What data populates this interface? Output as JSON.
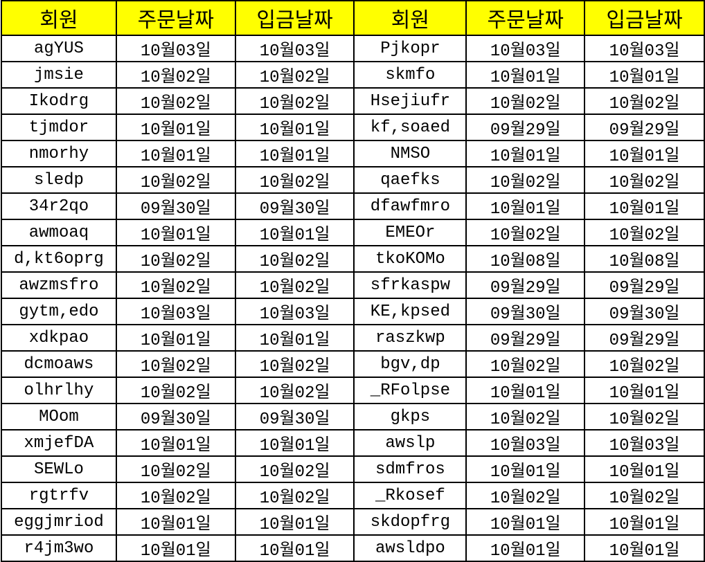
{
  "sheet": {
    "header_bg": "#ffff00",
    "headers": [
      "회원",
      "주문날짜",
      "입금날짜",
      "회원",
      "주문날짜",
      "입금날짜"
    ],
    "rows": [
      [
        "agYUS",
        "10월03일",
        "10월03일",
        "Pjkopr",
        "10월03일",
        "10월03일"
      ],
      [
        "jmsie",
        "10월02일",
        "10월02일",
        "skmfo",
        "10월01일",
        "10월01일"
      ],
      [
        "Ikodrg",
        "10월02일",
        "10월02일",
        "Hsejiufr",
        "10월02일",
        "10월02일"
      ],
      [
        "tjmdor",
        "10월01일",
        "10월01일",
        "kf,soaed",
        "09월29일",
        "09월29일"
      ],
      [
        "nmorhy",
        "10월01일",
        "10월01일",
        "NMSO",
        "10월01일",
        "10월01일"
      ],
      [
        "sledp",
        "10월02일",
        "10월02일",
        "qaefks",
        "10월02일",
        "10월02일"
      ],
      [
        "34r2qo",
        "09월30일",
        "09월30일",
        "dfawfmro",
        "10월01일",
        "10월01일"
      ],
      [
        "awmoaq",
        "10월01일",
        "10월01일",
        "EMEOr",
        "10월02일",
        "10월02일"
      ],
      [
        "d,kt6oprg",
        "10월02일",
        "10월02일",
        "tkoKOMo",
        "10월08일",
        "10월08일"
      ],
      [
        "awzmsfro",
        "10월02일",
        "10월02일",
        "sfrkaspw",
        "09월29일",
        "09월29일"
      ],
      [
        "gytm,edo",
        "10월03일",
        "10월03일",
        "KE,kpsed",
        "09월30일",
        "09월30일"
      ],
      [
        "xdkpao",
        "10월01일",
        "10월01일",
        "raszkwp",
        "09월29일",
        "09월29일"
      ],
      [
        "dcmoaws",
        "10월02일",
        "10월02일",
        "bgv,dp",
        "10월02일",
        "10월02일"
      ],
      [
        "olhrlhy",
        "10월02일",
        "10월02일",
        "_RFolpse",
        "10월01일",
        "10월01일"
      ],
      [
        "MOom",
        "09월30일",
        "09월30일",
        "gkps",
        "10월02일",
        "10월02일"
      ],
      [
        "xmjefDA",
        "10월01일",
        "10월01일",
        "awslp",
        "10월03일",
        "10월03일"
      ],
      [
        "SEWLo",
        "10월02일",
        "10월02일",
        "sdmfros",
        "10월01일",
        "10월01일"
      ],
      [
        "rgtrfv",
        "10월02일",
        "10월02일",
        "_Rkosef",
        "10월02일",
        "10월02일"
      ],
      [
        "eggjmriod",
        "10월01일",
        "10월01일",
        "skdopfrg",
        "10월01일",
        "10월01일"
      ],
      [
        "r4jm3wo",
        "10월01일",
        "10월01일",
        "awsldpo",
        "10월01일",
        "10월01일"
      ]
    ]
  }
}
